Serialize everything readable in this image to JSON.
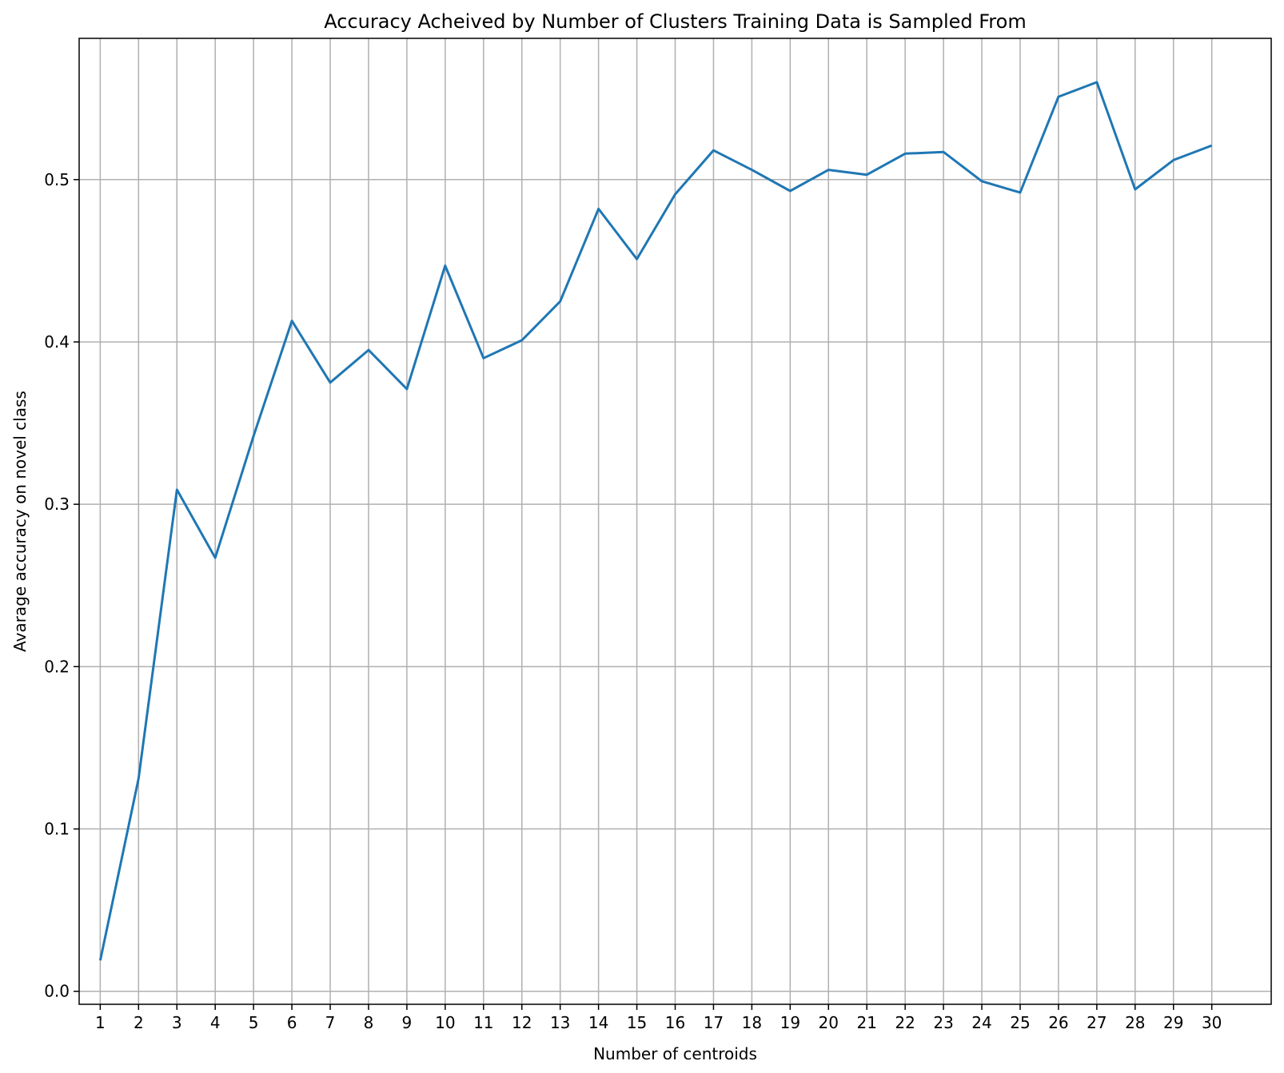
{
  "chart_data": {
    "type": "line",
    "title": "Accuracy Acheived by Number of Clusters Training Data is Sampled From",
    "xlabel": "Number of centroids",
    "ylabel": "Avarage accuracy on novel class",
    "x": [
      1,
      2,
      3,
      4,
      5,
      6,
      7,
      8,
      9,
      10,
      11,
      12,
      13,
      14,
      15,
      16,
      17,
      18,
      19,
      20,
      21,
      22,
      23,
      24,
      25,
      26,
      27,
      28,
      29,
      30
    ],
    "series": [
      {
        "values": [
          0.019,
          0.131,
          0.309,
          0.267,
          0.342,
          0.413,
          0.375,
          0.395,
          0.371,
          0.447,
          0.39,
          0.401,
          0.425,
          0.482,
          0.451,
          0.491,
          0.518,
          0.506,
          0.493,
          0.506,
          0.503,
          0.516,
          0.517,
          0.499,
          0.492,
          0.551,
          0.56,
          0.494,
          0.512,
          0.521
        ],
        "color": "#1f77b4"
      }
    ],
    "xticks": [
      "1",
      "2",
      "3",
      "4",
      "5",
      "6",
      "7",
      "8",
      "9",
      "10",
      "11",
      "12",
      "13",
      "14",
      "15",
      "16",
      "17",
      "18",
      "19",
      "20",
      "21",
      "22",
      "23",
      "24",
      "25",
      "26",
      "27",
      "28",
      "29",
      "30"
    ],
    "yticks": [
      "0.0",
      "0.1",
      "0.2",
      "0.3",
      "0.4",
      "0.5"
    ],
    "ytick_values": [
      0.0,
      0.1,
      0.2,
      0.3,
      0.4,
      0.5
    ],
    "xlim": [
      0.45,
      31.55
    ],
    "ylim": [
      -0.008,
      0.587
    ],
    "grid": true,
    "grid_color": "#b0b0b0",
    "axis_color": "#000000"
  }
}
